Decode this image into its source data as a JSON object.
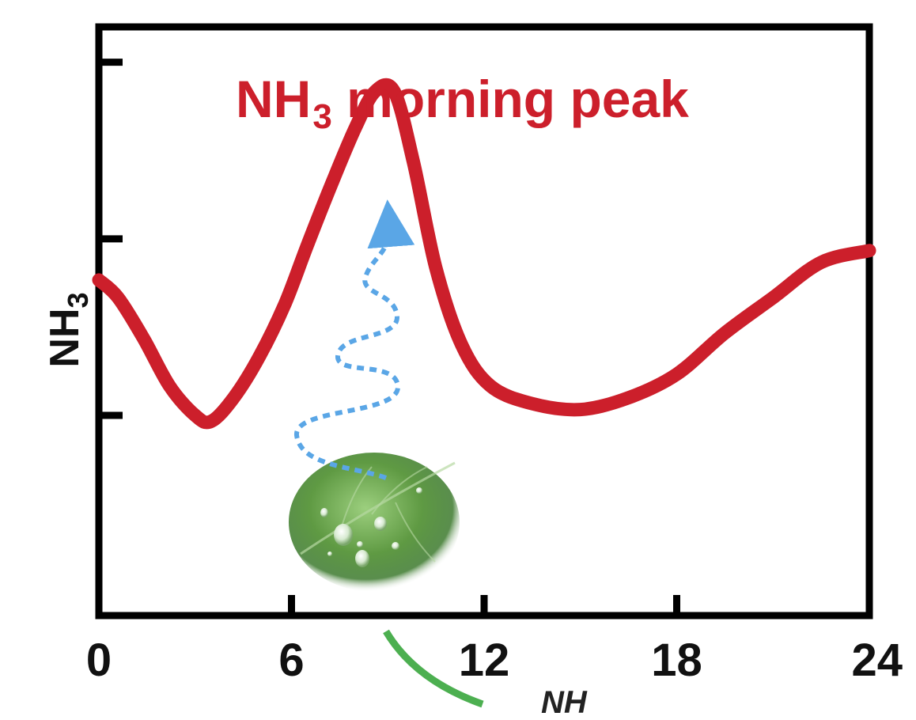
{
  "chart_data": {
    "type": "line",
    "title_main": "NH",
    "title_sub": "3",
    "title_rest": " morning peak",
    "ylabel_main": "NH",
    "ylabel_sub": "3",
    "xlabel": "",
    "xticks": [
      0,
      6,
      12,
      18,
      24
    ],
    "xtick_labels": [
      "0",
      "6",
      "12",
      "18",
      "24"
    ],
    "xlim": [
      0,
      24
    ],
    "ylim": [
      0,
      10
    ],
    "yticks": [
      3.4,
      6.4,
      9.4
    ],
    "ytick_labels": [],
    "grid": false,
    "series": [
      {
        "color": "#cc1f2b",
        "x": [
          0,
          0.6,
          1.4,
          2.2,
          3.0,
          3.5,
          4.2,
          5.0,
          5.8,
          6.5,
          7.3,
          8.0,
          8.6,
          9.2,
          9.8,
          10.5,
          11.3,
          12.2,
          13.5,
          15.0,
          16.5,
          18.0,
          19.5,
          21.0,
          22.5,
          24.0
        ],
        "y": [
          5.7,
          5.4,
          4.7,
          3.9,
          3.4,
          3.3,
          3.7,
          4.4,
          5.3,
          6.3,
          7.4,
          8.3,
          8.9,
          8.9,
          7.7,
          5.9,
          4.6,
          3.9,
          3.6,
          3.5,
          3.7,
          4.1,
          4.8,
          5.4,
          6.0,
          6.2
        ]
      }
    ],
    "annotations": {
      "arrow_color": "#5aa6e6",
      "leaf_color": "#5f9a43",
      "bottom_arc_color": "#4caf50",
      "cut_off_text": "NH"
    }
  }
}
